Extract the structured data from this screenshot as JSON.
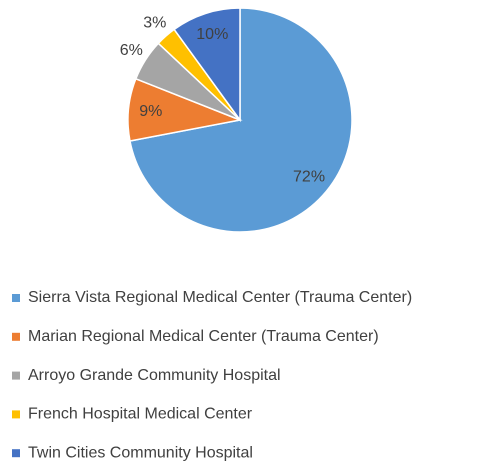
{
  "chart_data": {
    "type": "pie",
    "categories": [
      "Sierra Vista Regional Medical Center (Trauma Center)",
      "Marian Regional Medical Center (Trauma Center)",
      "Arroyo Grande Community Hospital",
      "French Hospital Medical Center",
      "Twin Cities Community Hospital"
    ],
    "values": [
      72,
      9,
      6,
      3,
      10
    ],
    "value_labels": [
      "72%",
      "9%",
      "6%",
      "3%",
      "10%"
    ],
    "colors": [
      "#5b9bd5",
      "#ed7d31",
      "#a5a5a5",
      "#ffc000",
      "#4472c4"
    ],
    "legend": "bottom"
  }
}
